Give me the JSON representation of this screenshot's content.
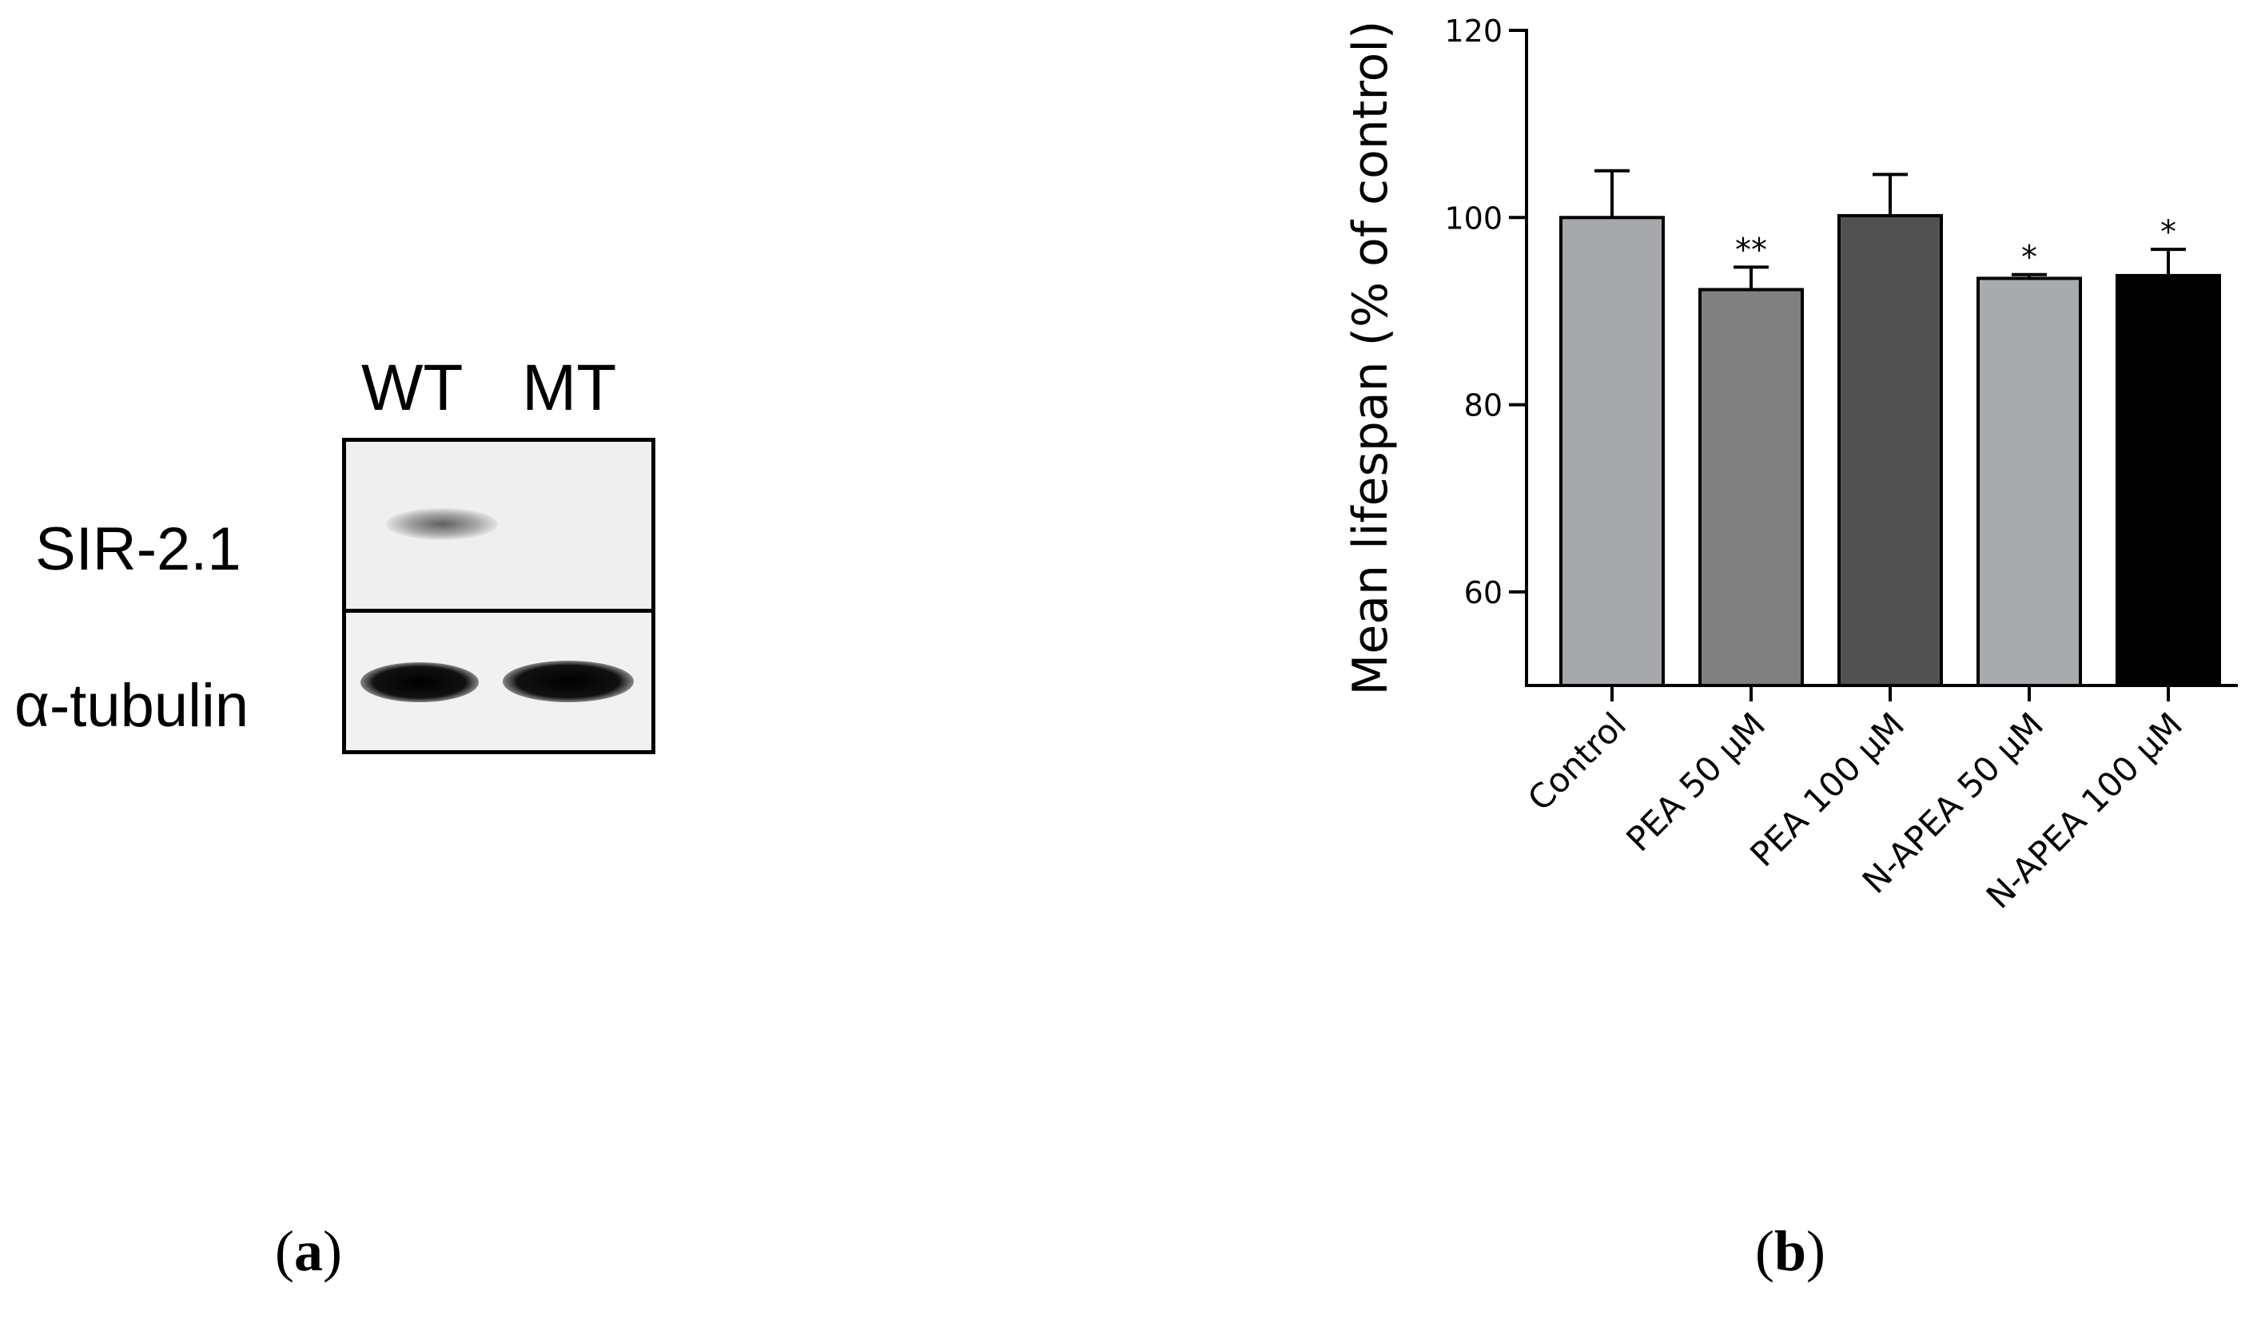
{
  "panel_a": {
    "lanes": [
      "WT",
      "MT"
    ],
    "rows": [
      "SIR-2.1",
      "α-tubulin"
    ]
  },
  "captions": {
    "a": {
      "open": "(",
      "letter": "a",
      "close": ")"
    },
    "b": {
      "open": "(",
      "letter": "b",
      "close": ")"
    }
  },
  "chart_data": {
    "type": "bar",
    "title": "",
    "xlabel": "",
    "ylabel": "Mean lifespan (% of control)",
    "ylim": [
      50,
      120
    ],
    "yticks": [
      60,
      80,
      100,
      120
    ],
    "grid": false,
    "categories": [
      "Control",
      "PEA 50 μM",
      "PEA 100 μM",
      "N-APEA 50 μM",
      "N-APEA 100 μM"
    ],
    "values": [
      100,
      92.3,
      100.2,
      93.5,
      93.8
    ],
    "errors": [
      5.0,
      2.4,
      4.4,
      0.4,
      2.8
    ],
    "significance": [
      "",
      "**",
      "",
      "*",
      "*"
    ],
    "colors": [
      "#a7a8ab",
      "#808080",
      "#515151",
      "#a9aaad",
      "#000000"
    ]
  }
}
